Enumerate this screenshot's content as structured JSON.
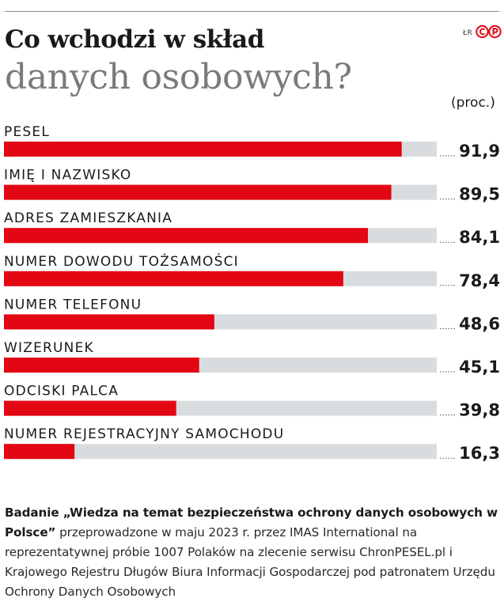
{
  "credit": "ŁR",
  "logo_text": "©P",
  "title_line1": "Co wchodzi w skład",
  "title_line2": "danych osobowych?",
  "colors": {
    "bar": "#e30613",
    "track": "#d9dcde",
    "title_accent": "#7a7a7a"
  },
  "chart_data": {
    "type": "bar",
    "orientation": "horizontal",
    "unit": "(proc.)",
    "xlim": [
      0,
      100
    ],
    "categories": [
      "PESEL",
      "IMIĘ I NAZWISKO",
      "ADRES ZAMIESZKANIA",
      "NUMER DOWODU TOŻSAMOŚCI",
      "NUMER TELEFONU",
      "WIZERUNEK",
      "ODCISKI PALCA",
      "NUMER REJESTRACYJNY SAMOCHODU"
    ],
    "values": [
      91.9,
      89.5,
      84.1,
      78.4,
      48.6,
      45.1,
      39.8,
      16.3
    ],
    "value_labels": [
      "91,9",
      "89,5",
      "84,1",
      "78,4",
      "48,6",
      "45,1",
      "39,8",
      "16,3"
    ]
  },
  "note": {
    "bold": "Badanie „Wiedza na temat bezpieczeństwa ochrony danych osobowych w Polsce”",
    "text": " przeprowadzone w maju 2023 r. przez IMAS International na reprezentatywnej próbie 1007 Polaków na zlecenie serwisu ChronPESEL.pl i Krajowego Rejestru Długów Biura Informacji Gospodarczej pod patronatem Urzędu Ochrony Danych Osobowych"
  }
}
